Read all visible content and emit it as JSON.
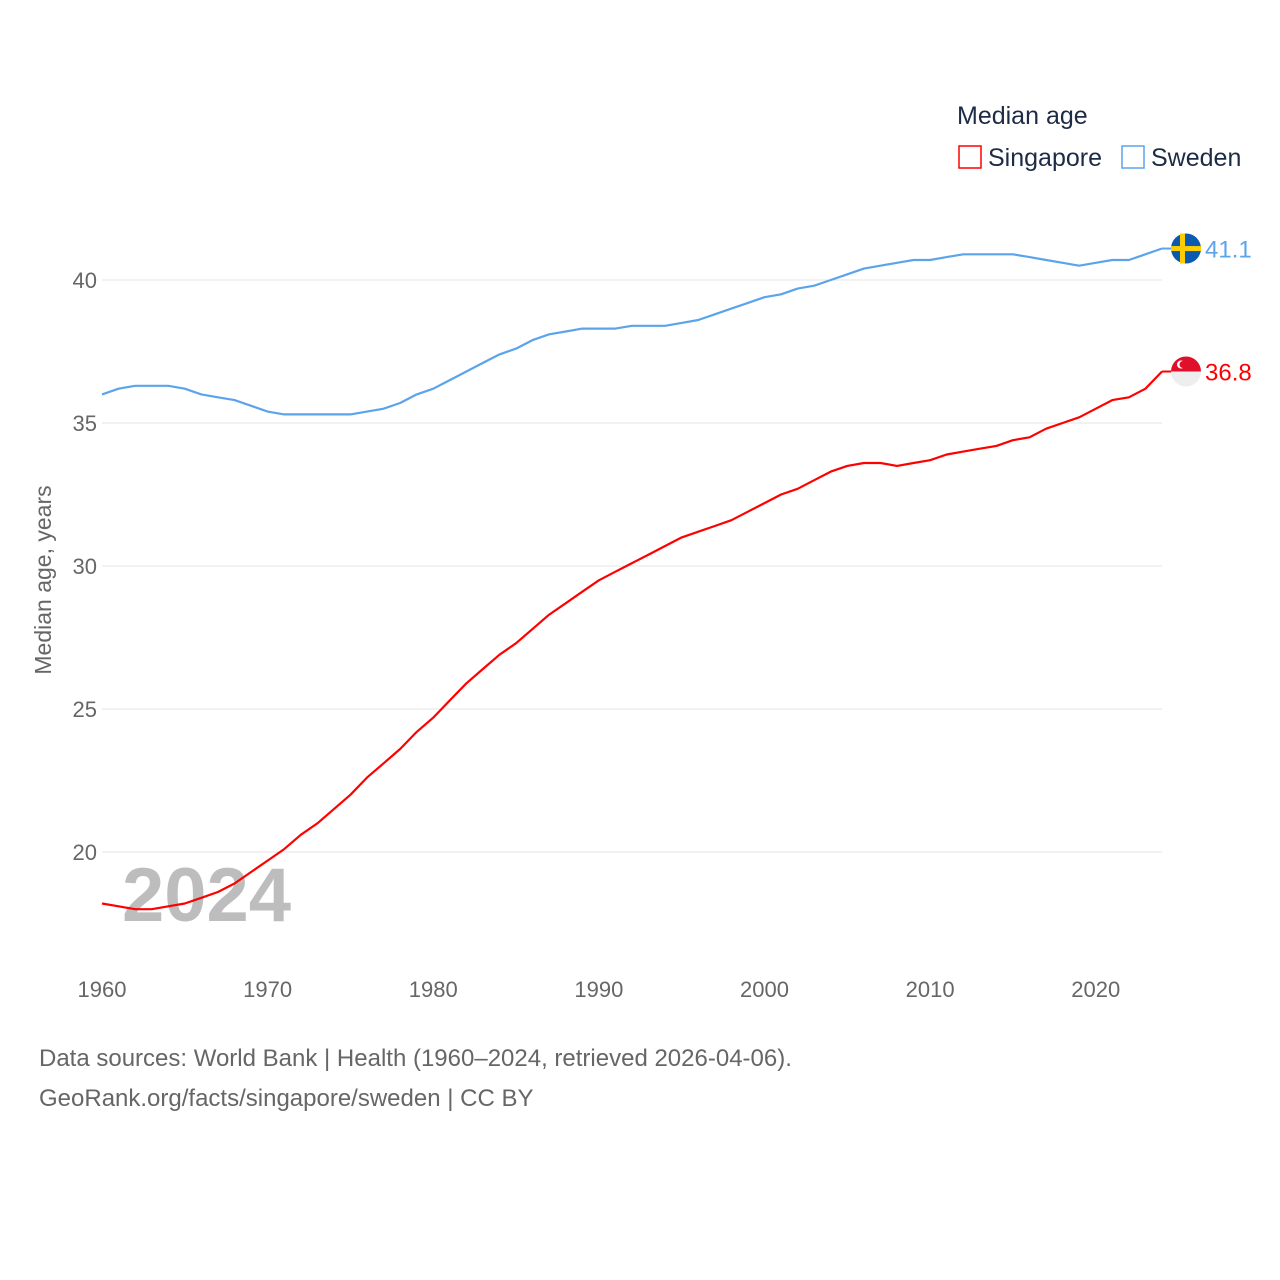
{
  "chart_data": {
    "type": "line",
    "title": "Median age",
    "xlabel": "",
    "ylabel": "Median age, years",
    "xlim": [
      1960,
      2024
    ],
    "ylim": [
      17.5,
      42
    ],
    "yticks": [
      20,
      25,
      30,
      35,
      40
    ],
    "xticks": [
      1960,
      1970,
      1980,
      1990,
      2000,
      2010,
      2020
    ],
    "grid": true,
    "legend_placement": "top-right",
    "watermark_year": "2024",
    "x": [
      1960,
      1961,
      1962,
      1963,
      1964,
      1965,
      1966,
      1967,
      1968,
      1969,
      1970,
      1971,
      1972,
      1973,
      1974,
      1975,
      1976,
      1977,
      1978,
      1979,
      1980,
      1981,
      1982,
      1983,
      1984,
      1985,
      1986,
      1987,
      1988,
      1989,
      1990,
      1991,
      1992,
      1993,
      1994,
      1995,
      1996,
      1997,
      1998,
      1999,
      2000,
      2001,
      2002,
      2003,
      2004,
      2005,
      2006,
      2007,
      2008,
      2009,
      2010,
      2011,
      2012,
      2013,
      2014,
      2015,
      2016,
      2017,
      2018,
      2019,
      2020,
      2021,
      2022,
      2023,
      2024
    ],
    "series": [
      {
        "name": "Singapore",
        "color": "#ff0000",
        "end_label": "36.8",
        "values": [
          18.2,
          18.1,
          18.0,
          18.0,
          18.1,
          18.2,
          18.4,
          18.6,
          18.9,
          19.3,
          19.7,
          20.1,
          20.6,
          21.0,
          21.5,
          22.0,
          22.6,
          23.1,
          23.6,
          24.2,
          24.7,
          25.3,
          25.9,
          26.4,
          26.9,
          27.3,
          27.8,
          28.3,
          28.7,
          29.1,
          29.5,
          29.8,
          30.1,
          30.4,
          30.7,
          31.0,
          31.2,
          31.4,
          31.6,
          31.9,
          32.2,
          32.5,
          32.7,
          33.0,
          33.3,
          33.5,
          33.6,
          33.6,
          33.5,
          33.6,
          33.7,
          33.9,
          34.0,
          34.1,
          34.2,
          34.4,
          34.5,
          34.8,
          35.0,
          35.2,
          35.5,
          35.8,
          35.9,
          36.2,
          36.8
        ]
      },
      {
        "name": "Sweden",
        "color": "#5ba4ec",
        "end_label": "41.1",
        "values": [
          36.0,
          36.2,
          36.3,
          36.3,
          36.3,
          36.2,
          36.0,
          35.9,
          35.8,
          35.6,
          35.4,
          35.3,
          35.3,
          35.3,
          35.3,
          35.3,
          35.4,
          35.5,
          35.7,
          36.0,
          36.2,
          36.5,
          36.8,
          37.1,
          37.4,
          37.6,
          37.9,
          38.1,
          38.2,
          38.3,
          38.3,
          38.3,
          38.4,
          38.4,
          38.4,
          38.5,
          38.6,
          38.8,
          39.0,
          39.2,
          39.4,
          39.5,
          39.7,
          39.8,
          40.0,
          40.2,
          40.4,
          40.5,
          40.6,
          40.7,
          40.7,
          40.8,
          40.9,
          40.9,
          40.9,
          40.9,
          40.8,
          40.7,
          40.6,
          40.5,
          40.6,
          40.7,
          40.7,
          40.9,
          41.1
        ]
      }
    ]
  },
  "footer": {
    "line1": "Data sources: World Bank | Health (1960–2024, retrieved 2026-04-06).",
    "line2": "GeoRank.org/facts/singapore/sweden | CC BY"
  }
}
